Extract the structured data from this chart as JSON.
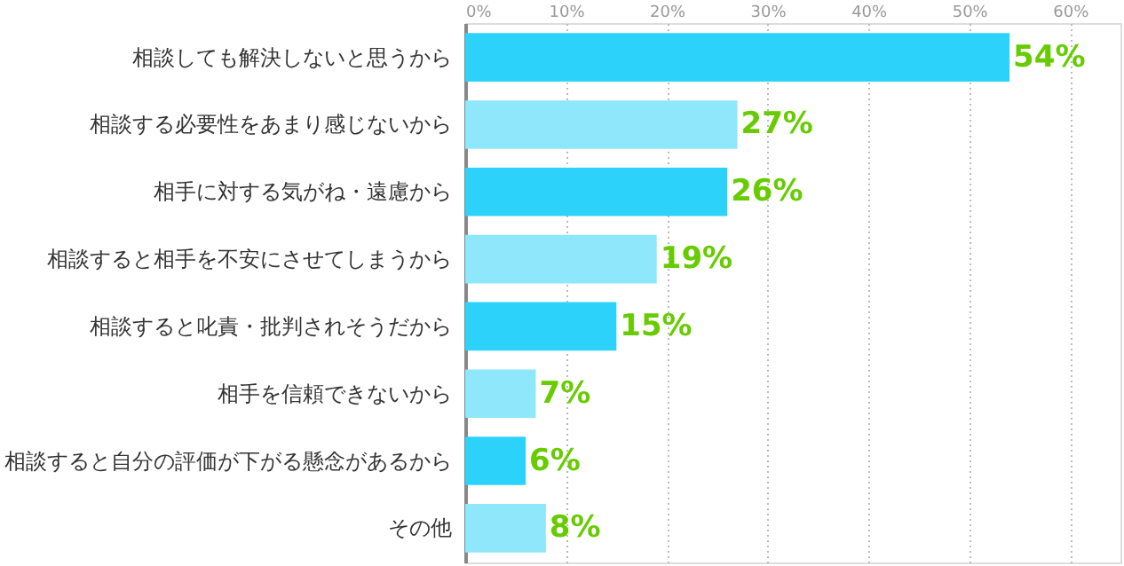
{
  "chart_data": {
    "type": "bar",
    "orientation": "horizontal",
    "categories": [
      "相談しても解決しないと思うから",
      "相談する必要性をあまり感じないから",
      "相手に対する気がね・遠慮から",
      "相談すると相手を不安にさせてしまうから",
      "相談すると叱責・批判されそうだから",
      "相手を信頼できないから",
      "相談すると自分の評価が下がる懸念があるから",
      "その他"
    ],
    "values": [
      54,
      27,
      26,
      19,
      15,
      7,
      6,
      8
    ],
    "colors": [
      "#2dd2fa",
      "#8ee7fb",
      "#2dd2fa",
      "#8ee7fb",
      "#2dd2fa",
      "#8ee7fb",
      "#2dd2fa",
      "#8ee7fb"
    ],
    "value_labels": [
      "54%",
      "27%",
      "26%",
      "19%",
      "15%",
      "7%",
      "6%",
      "8%"
    ],
    "xlim": [
      0,
      65
    ],
    "xticks": [
      {
        "value": 0,
        "label": "0%"
      },
      {
        "value": 10,
        "label": "10%"
      },
      {
        "value": 20,
        "label": "20%"
      },
      {
        "value": 30,
        "label": "30%"
      },
      {
        "value": 40,
        "label": "40%"
      },
      {
        "value": 50,
        "label": "50%"
      },
      {
        "value": 60,
        "label": "60%"
      }
    ],
    "grid": "x"
  }
}
